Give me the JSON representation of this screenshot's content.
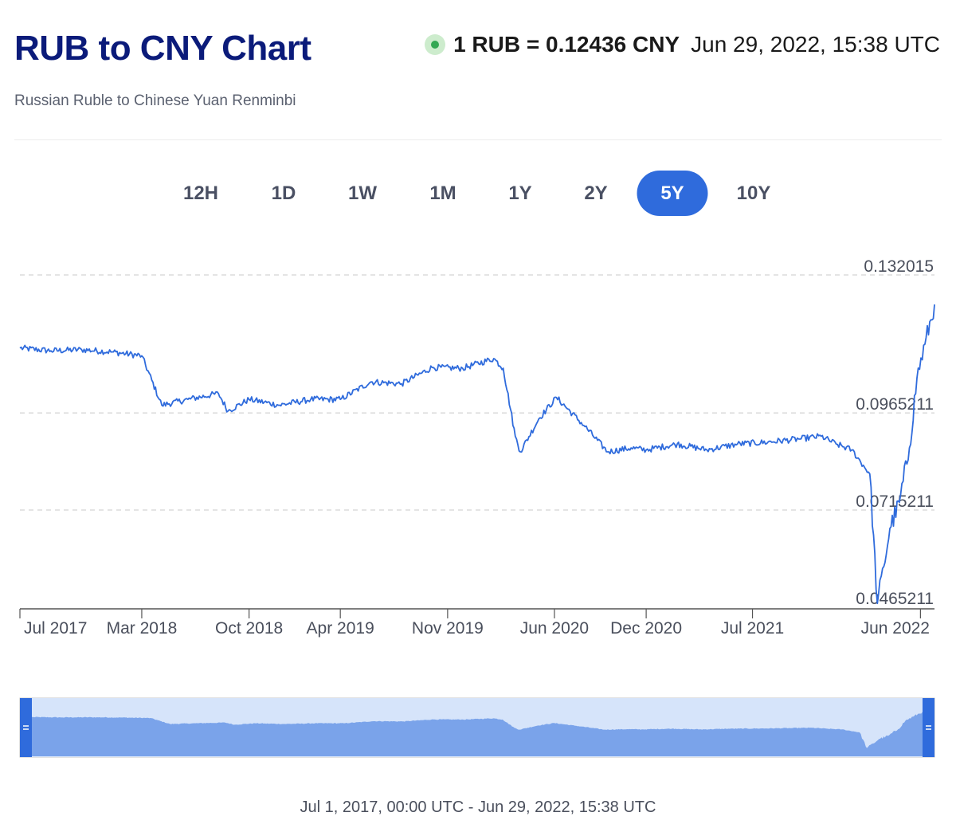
{
  "header": {
    "title": "RUB to CNY Chart",
    "rate": "1 RUB = 0.12436 CNY",
    "rate_time": "Jun 29, 2022, 15:38 UTC",
    "subtitle": "Russian Ruble to Chinese Yuan Renminbi",
    "live_color": "#34a853"
  },
  "ranges": [
    {
      "label": "12H",
      "active": false
    },
    {
      "label": "1D",
      "active": false
    },
    {
      "label": "1W",
      "active": false
    },
    {
      "label": "1M",
      "active": false
    },
    {
      "label": "1Y",
      "active": false
    },
    {
      "label": "2Y",
      "active": false
    },
    {
      "label": "5Y",
      "active": true
    },
    {
      "label": "10Y",
      "active": false
    }
  ],
  "colors": {
    "title": "#0b1b7a",
    "line": "#2f6bdc",
    "active_range": "#2f6bdc",
    "navigator_fill": "#7aa3ea",
    "navigator_bg": "#d6e4fa"
  },
  "chart_data": {
    "type": "line",
    "title": "",
    "xlabel": "",
    "ylabel": "",
    "ylim": [
      0.0465211,
      0.132015
    ],
    "y_ticks": [
      "0.132015",
      "0.0965211",
      "0.0715211",
      "0.0465211"
    ],
    "x_ticks": [
      "Jul 2017",
      "Mar 2018",
      "Oct 2018",
      "Apr 2019",
      "Nov 2019",
      "Jun 2020",
      "Dec 2020",
      "Jul 2021",
      "Jun 2022"
    ],
    "grid": "horizontal dashed",
    "series": [
      {
        "x": [
          "2017-07-01",
          "2017-09-01",
          "2017-11-01",
          "2018-01-01",
          "2018-03-01",
          "2018-04-10",
          "2018-06-01",
          "2018-08-01",
          "2018-08-20",
          "2018-10-01",
          "2018-12-01",
          "2019-02-01",
          "2019-04-01",
          "2019-06-01",
          "2019-08-01",
          "2019-10-01",
          "2019-12-01",
          "2020-02-01",
          "2020-02-20",
          "2020-03-15",
          "2020-03-25",
          "2020-05-01",
          "2020-06-05",
          "2020-08-01",
          "2020-09-15",
          "2020-11-01",
          "2020-12-01",
          "2021-02-01",
          "2021-04-01",
          "2021-06-01",
          "2021-08-01",
          "2021-10-01",
          "2021-11-15",
          "2021-12-15",
          "2022-01-15",
          "2022-02-20",
          "2022-03-07",
          "2022-03-20",
          "2022-04-01",
          "2022-04-20",
          "2022-05-10",
          "2022-05-25",
          "2022-06-10",
          "2022-06-29"
        ],
        "values": [
          0.1132,
          0.1125,
          0.1128,
          0.1122,
          0.1112,
          0.0985,
          0.1,
          0.1015,
          0.097,
          0.1,
          0.0985,
          0.1,
          0.1,
          0.1045,
          0.104,
          0.1082,
          0.108,
          0.1105,
          0.108,
          0.0905,
          0.0865,
          0.095,
          0.1005,
          0.093,
          0.0865,
          0.0875,
          0.087,
          0.0885,
          0.087,
          0.0885,
          0.089,
          0.0898,
          0.0905,
          0.0885,
          0.087,
          0.0808,
          0.0475,
          0.057,
          0.0668,
          0.0735,
          0.0875,
          0.1055,
          0.1142,
          0.1244
        ]
      }
    ]
  },
  "navigator": {
    "range": "Jul 1, 2017, 00:00 UTC - Jun 29, 2022, 15:38 UTC"
  }
}
